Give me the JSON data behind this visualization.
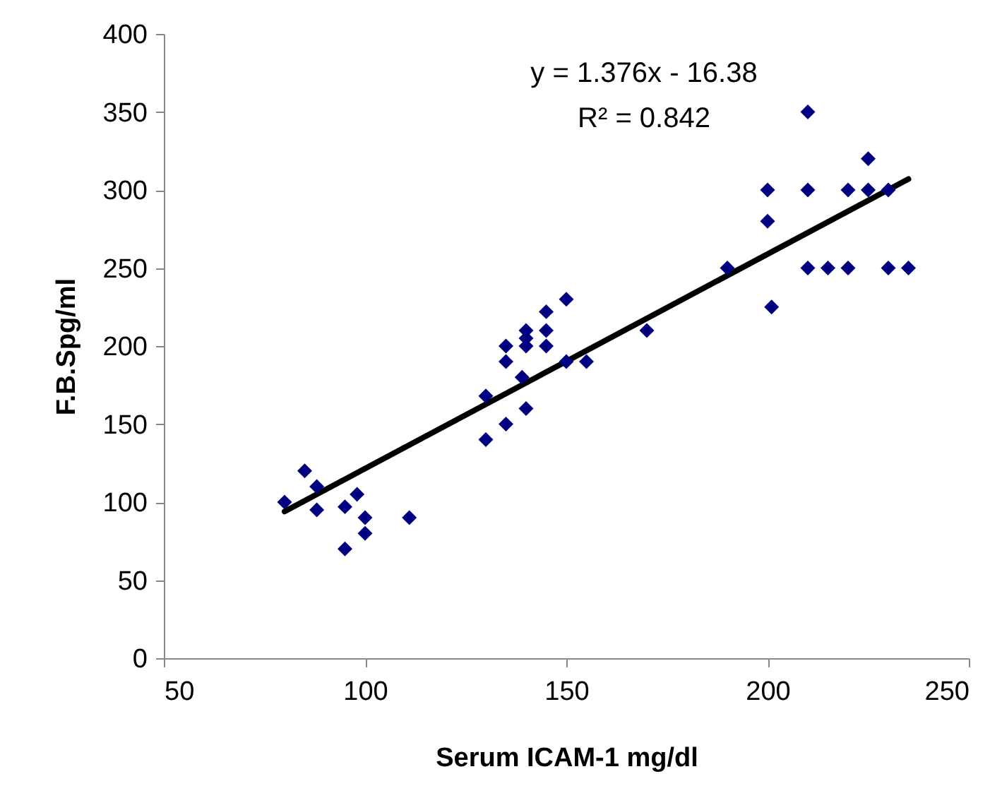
{
  "chart_data": {
    "type": "scatter",
    "xlabel": "Serum ICAM-1 mg/dl",
    "ylabel": "F.B.Spg/ml",
    "xlim": [
      50,
      250
    ],
    "xticks": [
      50,
      100,
      150,
      200,
      250
    ],
    "ylim": [
      0,
      400
    ],
    "yticks": [
      0,
      50,
      100,
      150,
      200,
      250,
      300,
      350,
      400
    ],
    "grid": false,
    "annotations": [
      "y = 1.376x - 16.38",
      "R² = 0.842"
    ],
    "series": [
      {
        "type": "scatter",
        "color": "#000080",
        "marker": "diamond",
        "x": [
          80,
          85,
          88,
          88,
          95,
          98,
          100,
          100,
          95,
          111,
          150,
          145,
          140,
          145,
          135,
          140,
          140,
          145,
          135,
          150,
          155,
          139,
          130,
          170,
          140,
          135,
          130,
          200,
          190,
          201,
          210,
          215,
          220,
          230,
          235,
          210,
          225,
          200,
          210,
          220,
          225,
          230
        ],
        "values": [
          100,
          120,
          110,
          95,
          97,
          105,
          90,
          80,
          70,
          90,
          230,
          222,
          210,
          210,
          200,
          205,
          200,
          200,
          190,
          190,
          190,
          180,
          168,
          210,
          160,
          150,
          140,
          280,
          250,
          225,
          250,
          250,
          250,
          250,
          250,
          350,
          320,
          300,
          300,
          300,
          300,
          300
        ]
      },
      {
        "type": "line",
        "color": "#000000",
        "marker": "none",
        "x": [
          80,
          235
        ],
        "values": [
          94,
          307
        ]
      }
    ]
  }
}
